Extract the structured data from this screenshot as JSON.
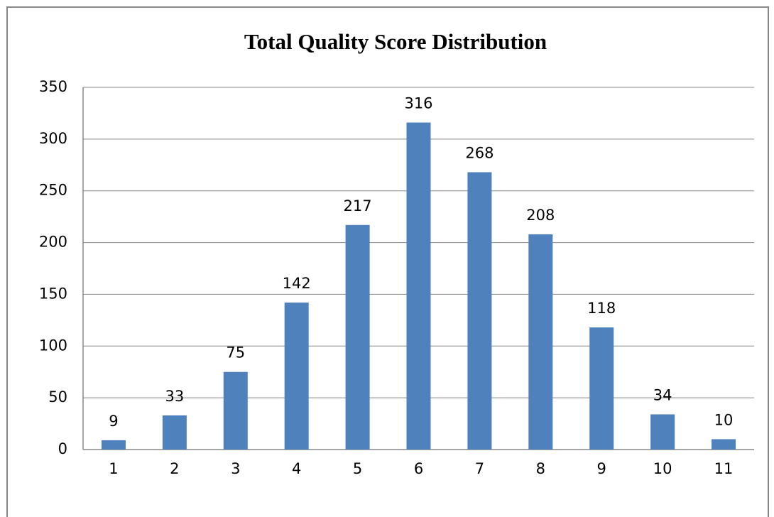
{
  "chart_data": {
    "type": "bar",
    "title": "Total Quality Score Distribution",
    "categories": [
      "1",
      "2",
      "3",
      "4",
      "5",
      "6",
      "7",
      "8",
      "9",
      "10",
      "11"
    ],
    "values": [
      9,
      33,
      75,
      142,
      217,
      316,
      268,
      208,
      118,
      34,
      10
    ],
    "color": "#4f81bd",
    "ylim": [
      0,
      350
    ],
    "yticks": [
      0,
      50,
      100,
      150,
      200,
      250,
      300,
      350
    ],
    "grid": true
  }
}
